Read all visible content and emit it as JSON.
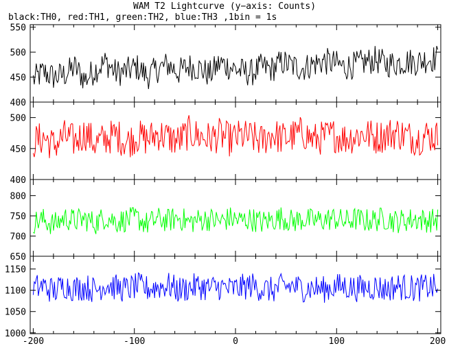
{
  "chart_data": {
    "type": "line",
    "title": "WAM T2 Lightcurve (y−axis: Counts)",
    "subtitle": "black:TH0, red:TH1, green:TH2, blue:TH3 ,1bin = 1s",
    "x_ticks": [
      -200,
      -100,
      0,
      100,
      200
    ],
    "xlim": [
      -203,
      203
    ],
    "series": [
      {
        "name": "TH0",
        "color": "#000000",
        "ylim": [
          400,
          555
        ],
        "yticks": [
          400,
          450,
          500,
          550
        ],
        "values": [
          445,
          460,
          450,
          455,
          470,
          445,
          465,
          480,
          458,
          462,
          470,
          452,
          466,
          475,
          460,
          472,
          468,
          455,
          478,
          470,
          462,
          458,
          470,
          466,
          480,
          472,
          468,
          476,
          482,
          478,
          470,
          474,
          480,
          485,
          476,
          478,
          482,
          480,
          486,
          488
        ]
      },
      {
        "name": "TH1",
        "color": "#ff0000",
        "ylim": [
          400,
          525
        ],
        "yticks": [
          400,
          450,
          500
        ],
        "values": [
          460,
          468,
          455,
          470,
          462,
          475,
          458,
          466,
          472,
          460,
          470,
          465,
          474,
          468,
          462,
          476,
          470,
          466,
          472,
          464,
          470,
          468,
          462,
          474,
          466,
          470,
          476,
          464,
          468,
          472,
          466,
          470,
          474,
          468,
          472,
          476,
          470,
          466,
          472,
          468
        ]
      },
      {
        "name": "TH2",
        "color": "#00ff00",
        "ylim": [
          650,
          840
        ],
        "yticks": [
          650,
          700,
          750,
          800
        ],
        "values": [
          735,
          740,
          728,
          745,
          738,
          742,
          732,
          748,
          736,
          740,
          744,
          730,
          742,
          738,
          746,
          734,
          740,
          742,
          736,
          744,
          738,
          742,
          734,
          740,
          746,
          736,
          742,
          738,
          740,
          744,
          736,
          742,
          738,
          740,
          744,
          736,
          740,
          742,
          738,
          740
        ]
      },
      {
        "name": "TH3",
        "color": "#0000ff",
        "ylim": [
          998,
          1180
        ],
        "yticks": [
          1000,
          1050,
          1100,
          1150
        ],
        "values": [
          1105,
          1110,
          1098,
          1112,
          1104,
          1108,
          1100,
          1115,
          1106,
          1102,
          1110,
          1104,
          1108,
          1112,
          1100,
          1106,
          1110,
          1104,
          1108,
          1102,
          1106,
          1112,
          1104,
          1100,
          1108,
          1110,
          1104,
          1106,
          1102,
          1108,
          1110,
          1104,
          1106,
          1108,
          1102,
          1110,
          1106,
          1104,
          1108,
          1106
        ]
      }
    ],
    "series_amplitude": [
      28,
      28,
      30,
      32
    ]
  }
}
